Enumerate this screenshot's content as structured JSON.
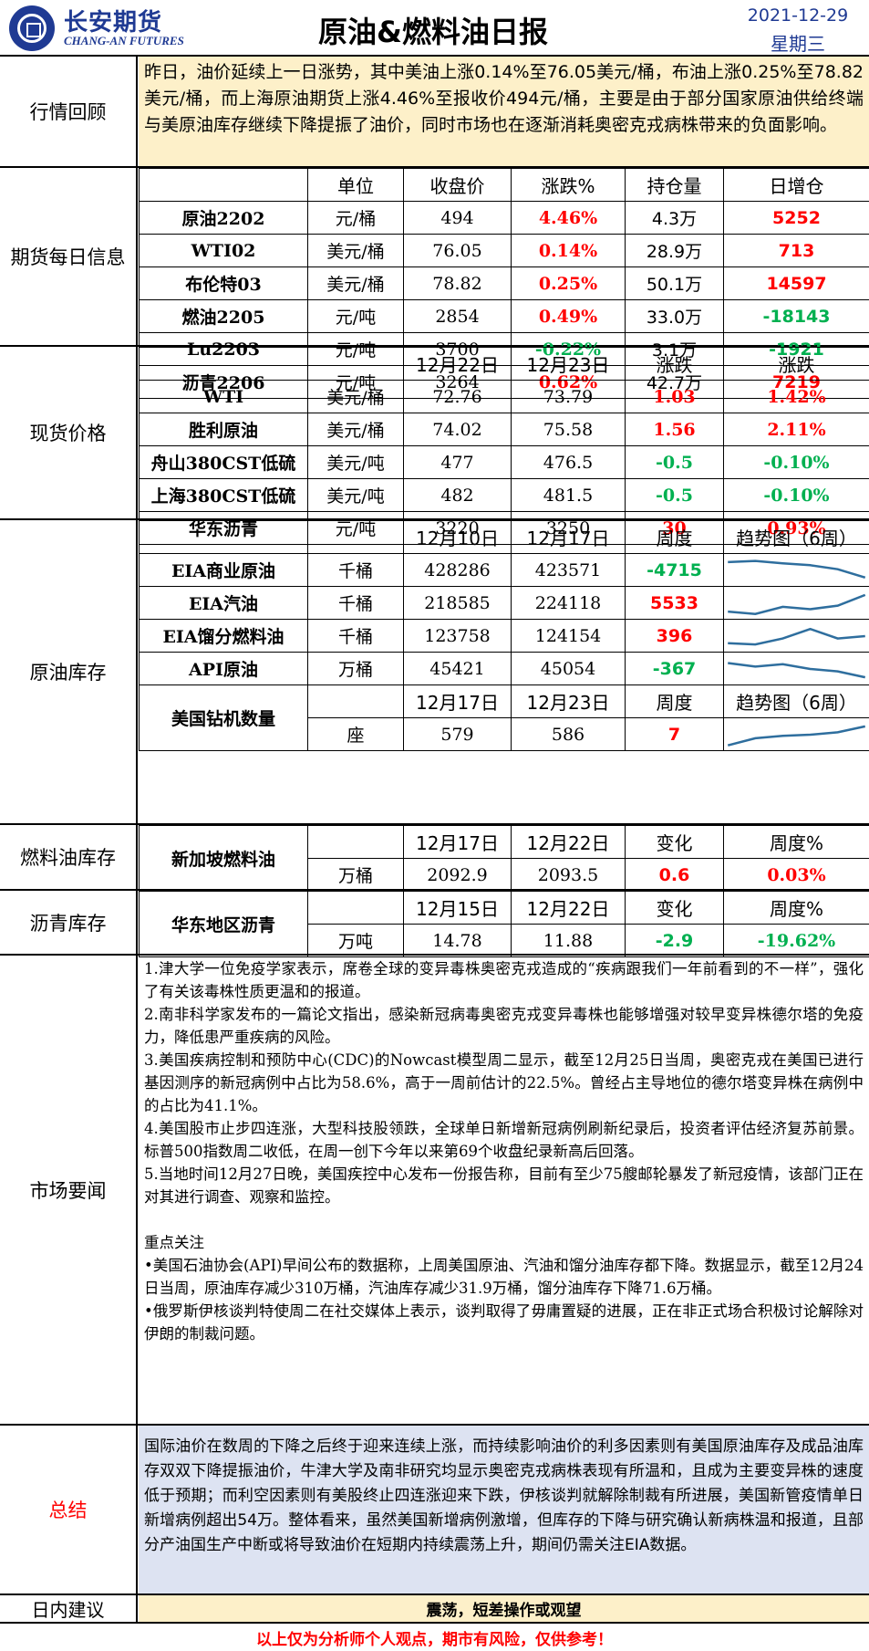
{
  "header": {
    "logo_cn": "长安期货",
    "logo_en": "CHANG-AN FUTURES",
    "title": "原油&燃料油日报",
    "date": "2021-12-29",
    "weekday": "星期三"
  },
  "review": {
    "label": "行情回顾",
    "text": "昨日，油价延续上一日涨势，其中美油上涨0.14%至76.05美元/桶，布油上涨0.25%至78.82美元/桶，而上海原油期货上涨4.46%至报收价494元/桶，主要是由于部分国家原油供给终端与美原油库存继续下降提振了油价，同时市场也在逐渐消耗奥密克戎病株带来的负面影响。"
  },
  "futures": {
    "label": "期货每日信息",
    "headers": [
      "单位",
      "收盘价",
      "涨跌%",
      "持仓量",
      "日增仓"
    ],
    "rows": [
      {
        "name": "原油2202",
        "unit": "元/桶",
        "close": "494",
        "change": "4.46%",
        "change_color": "red",
        "oi": "4.3万",
        "delta": "5252",
        "delta_color": "red"
      },
      {
        "name": "WTI02",
        "unit": "美元/桶",
        "close": "76.05",
        "change": "0.14%",
        "change_color": "red",
        "oi": "28.9万",
        "delta": "713",
        "delta_color": "red"
      },
      {
        "name": "布伦特03",
        "unit": "美元/桶",
        "close": "78.82",
        "change": "0.25%",
        "change_color": "red",
        "oi": "50.1万",
        "delta": "14597",
        "delta_color": "red"
      },
      {
        "name": "燃油2205",
        "unit": "元/吨",
        "close": "2854",
        "change": "0.49%",
        "change_color": "red",
        "oi": "33.0万",
        "delta": "-18143",
        "delta_color": "green"
      },
      {
        "name": "Lu2203",
        "unit": "元/吨",
        "close": "3700",
        "change": "-0.22%",
        "change_color": "green",
        "oi": "3.1万",
        "delta": "-1921",
        "delta_color": "green"
      },
      {
        "name": "沥青2206",
        "unit": "元/吨",
        "close": "3264",
        "change": "0.62%",
        "change_color": "red",
        "oi": "42.7万",
        "delta": "7219",
        "delta_color": "red"
      }
    ]
  },
  "spot": {
    "label": "现货价格",
    "headers": [
      "12月22日",
      "12月23日",
      "涨跌",
      "涨跌"
    ],
    "rows": [
      {
        "name": "WTI",
        "unit": "美元/桶",
        "d1": "72.76",
        "d2": "73.79",
        "chg": "1.03",
        "pct": "1.42%",
        "color": "red"
      },
      {
        "name": "胜利原油",
        "unit": "美元/桶",
        "d1": "74.02",
        "d2": "75.58",
        "chg": "1.56",
        "pct": "2.11%",
        "color": "red"
      },
      {
        "name": "舟山380CST低硫",
        "unit": "美元/吨",
        "d1": "477",
        "d2": "476.5",
        "chg": "-0.5",
        "pct": "-0.10%",
        "color": "green"
      },
      {
        "name": "上海380CST低硫",
        "unit": "美元/吨",
        "d1": "482",
        "d2": "481.5",
        "chg": "-0.5",
        "pct": "-0.10%",
        "color": "green"
      },
      {
        "name": "华东沥青",
        "unit": "元/吨",
        "d1": "3220",
        "d2": "3250",
        "chg": "30",
        "pct": "0.93%",
        "color": "red"
      }
    ]
  },
  "inventory": {
    "label": "原油库存",
    "headers": [
      "12月10日",
      "12月17日",
      "周度",
      "趋势图（6周）"
    ],
    "rows": [
      {
        "name": "EIA商业原油",
        "unit": "千桶",
        "d1": "428286",
        "d2": "423571",
        "chg": "-4715",
        "color": "green",
        "trend": [
          0.85,
          0.9,
          0.8,
          0.72,
          0.55,
          0.2
        ]
      },
      {
        "name": "EIA汽油",
        "unit": "千桶",
        "d1": "218585",
        "d2": "224118",
        "chg": "5533",
        "color": "red",
        "trend": [
          0.15,
          0.05,
          0.35,
          0.25,
          0.4,
          0.85
        ]
      },
      {
        "name": "EIA馏分燃料油",
        "unit": "千桶",
        "d1": "123758",
        "d2": "124154",
        "chg": "396",
        "color": "red",
        "trend": [
          0.2,
          0.15,
          0.4,
          0.8,
          0.4,
          0.5
        ]
      },
      {
        "name": "API原油",
        "unit": "万桶",
        "d1": "45421",
        "d2": "45054",
        "chg": "-367",
        "color": "green",
        "trend": [
          0.75,
          0.6,
          0.7,
          0.5,
          0.4,
          0.15
        ]
      }
    ],
    "rig": {
      "name": "美国钻机数量",
      "headers": [
        "12月17日",
        "12月23日",
        "周度",
        "趋势图（6周）"
      ],
      "unit": "座",
      "d1": "579",
      "d2": "586",
      "chg": "7",
      "color": "red",
      "trend": [
        0.05,
        0.35,
        0.45,
        0.5,
        0.6,
        0.85
      ]
    }
  },
  "fuel_inventory": {
    "label": "燃料油库存",
    "name": "新加坡燃料油",
    "headers": [
      "12月17日",
      "12月22日",
      "变化",
      "周度%"
    ],
    "unit": "万桶",
    "d1": "2092.9",
    "d2": "2093.5",
    "chg": "0.6",
    "pct": "0.03%",
    "color": "red"
  },
  "asphalt_inventory": {
    "label": "沥青库存",
    "name": "华东地区沥青",
    "headers": [
      "12月15日",
      "12月22日",
      "变化",
      "周度%"
    ],
    "unit": "万吨",
    "d1": "14.78",
    "d2": "11.88",
    "chg": "-2.9",
    "pct": "-19.62%",
    "color": "green"
  },
  "news": {
    "label": "市场要闻",
    "items": [
      "1.津大学一位免疫学家表示，席卷全球的变异毒株奥密克戎造成的“疾病跟我们一年前看到的不一样”，强化了有关该毒株性质更温和的报道。",
      "2.南非科学家发布的一篇论文指出，感染新冠病毒奥密克戎变异毒株也能够增强对较早变异株德尔塔的免疫力，降低患严重疾病的风险。",
      "3.美国疾病控制和预防中心(CDC)的Nowcast模型周二显示，截至12月25日当周，奥密克戎在美国已进行基因测序的新冠病例中占比为58.6%，高于一周前估计的22.5%。曾经占主导地位的德尔塔变异株在病例中的占比为41.1%。",
      "4.美国股市止步四连涨，大型科技股领跌，全球单日新增新冠病例刷新纪录后，投资者评估经济复苏前景。标普500指数周二收低，在周一创下今年以来第69个收盘纪录新高后回落。",
      "5.当地时间12月27日晚，美国疾控中心发布一份报告称，目前有至少75艘邮轮暴发了新冠疫情，该部门正在对其进行调查、观察和监控。"
    ],
    "focus_title": "重点关注",
    "focus": [
      "•美国石油协会(API)早间公布的数据称，上周美国原油、汽油和馏分油库存都下降。数据显示，截至12月24日当周，原油库存减少310万桶，汽油库存减少31.9万桶，馏分油库存下降71.6万桶。",
      "•俄罗斯伊核谈判特使周二在社交媒体上表示，谈判取得了毋庸置疑的进展，正在非正式场合积极讨论解除对伊朗的制裁问题。"
    ]
  },
  "summary": {
    "label": "总结",
    "text": "国际油价在数周的下降之后终于迎来连续上涨，而持续影响油价的利多因素则有美国原油库存及成品油库存双双下降提振油价，牛津大学及南非研究均显示奥密克戎病株表现有所温和，且成为主要变异株的速度低于预期；而利空因素则有美股终止四连涨迎来下跌，伊核谈判就解除制裁有所进展，美国新管疫情单日新增病例超出54万。整体看来，虽然美国新增病例激增，但库存的下降与研究确认新病株温和报道，且部分产油国生产中断或将导致油价在短期内持续震荡上升，期间仍需关注EIA数据。"
  },
  "advice": {
    "label": "日内建议",
    "text": "震荡，短差操作或观望"
  },
  "disclaimer": "以上仅为分析师个人观点，期市有风险，仅供参考！",
  "colors": {
    "brand": "#1f3a93",
    "up": "#ff0000",
    "down": "#00b050",
    "review_bg": "#fdf0c9",
    "summary_bg": "#dde3f2",
    "spark": "#2e6e9e"
  }
}
